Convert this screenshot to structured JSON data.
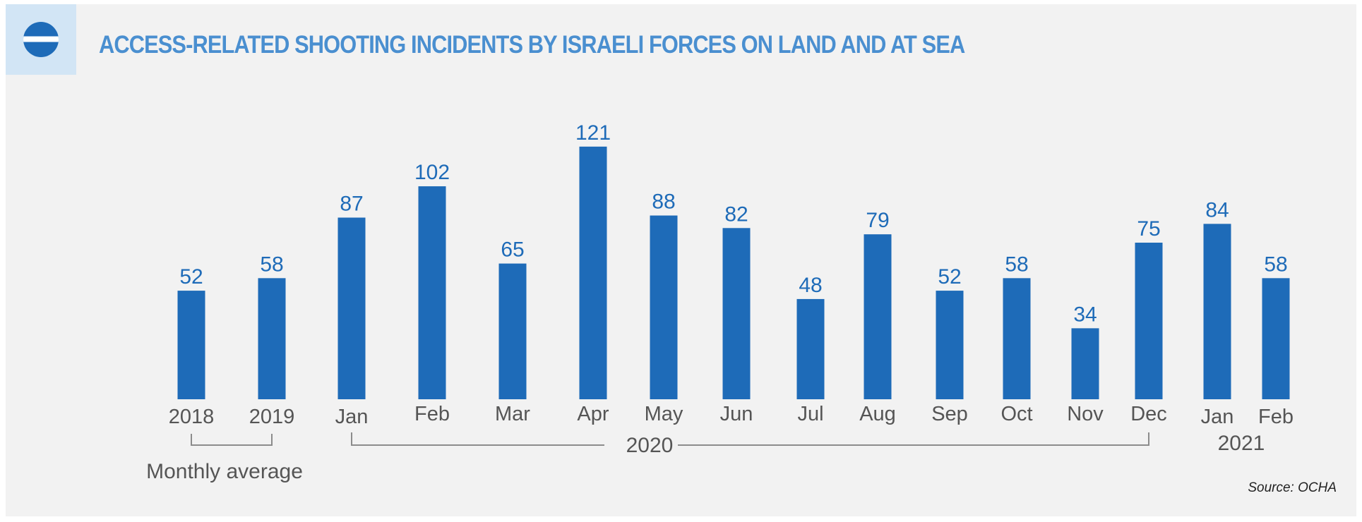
{
  "title": "ACCESS-RELATED SHOOTING INCIDENTS BY ISRAELI FORCES ON LAND AND AT SEA",
  "source": "Source: OCHA",
  "icon": "humanitarian-access-icon",
  "colors": {
    "bar": "#1e6bb8",
    "value_label": "#1e6bb8",
    "title": "#4a8fd0",
    "axis_text": "#555555",
    "bracket": "#8c8c8c",
    "panel_bg": "#f2f2f2",
    "icon_bg": "#d2e5f5"
  },
  "chart_data": {
    "type": "bar",
    "title": "ACCESS-RELATED SHOOTING INCIDENTS BY ISRAELI FORCES ON LAND AND AT SEA",
    "xlabel": "",
    "ylabel": "",
    "ylim": [
      0,
      121
    ],
    "grid": false,
    "legend": "none",
    "categories": [
      "2018",
      "2019",
      "Jan",
      "Feb",
      "Mar",
      "Apr",
      "May",
      "Jun",
      "Jul",
      "Aug",
      "Sep",
      "Oct",
      "Nov",
      "Dec",
      "Jan",
      "Feb"
    ],
    "values": [
      52,
      58,
      87,
      102,
      65,
      121,
      88,
      82,
      48,
      79,
      52,
      58,
      34,
      75,
      84,
      58
    ],
    "groups": [
      {
        "label": "Monthly average",
        "categories": [
          "2018",
          "2019"
        ]
      },
      {
        "label": "2020",
        "categories": [
          "Jan",
          "Feb",
          "Mar",
          "Apr",
          "May",
          "Jun",
          "Jul",
          "Aug",
          "Sep",
          "Oct",
          "Nov",
          "Dec"
        ]
      },
      {
        "label": "2021",
        "categories": [
          "Jan",
          "Feb"
        ]
      }
    ]
  }
}
